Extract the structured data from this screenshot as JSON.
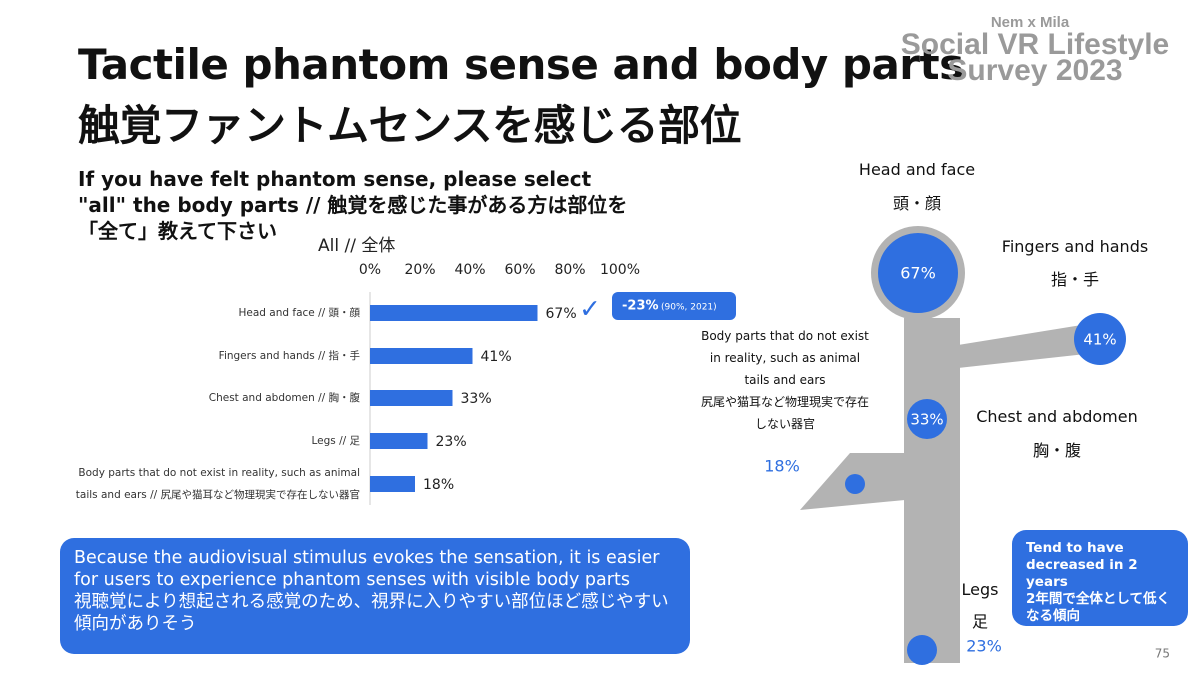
{
  "header": {
    "title_en": "Tactile phantom sense and body parts",
    "title_ja": "触覚ファントムセンスを感じる部位",
    "question": "If you have felt phantom sense, please select \"all\" the body parts // 触覚を感じた事がある方は部位を「全て」教えて下さい"
  },
  "logo": {
    "line1": "Nem x Mila",
    "line2": "Social VR Lifestyle",
    "line3": "Survey 2023"
  },
  "chart_data": {
    "type": "hbar",
    "title": "All // 全体",
    "categories": [
      "Head and face // 頭・顔",
      "Fingers and hands // 指・手",
      "Chest and abdomen // 胸・腹",
      "Legs // 足",
      "Body parts that do not exist in reality, such as animal tails and ears // 尻尾や猫耳など物理現実で存在しない器官"
    ],
    "values": [
      67,
      41,
      33,
      23,
      18
    ],
    "value_labels": [
      "67%",
      "41%",
      "33%",
      "23%",
      "18%"
    ],
    "color": "#2f6fe0",
    "xlim": [
      0,
      100
    ],
    "xticks": [
      {
        "value": 0,
        "label": "0%"
      },
      {
        "value": 20,
        "label": "20%"
      },
      {
        "value": 40,
        "label": "40%"
      },
      {
        "value": 60,
        "label": "60%"
      },
      {
        "value": 80,
        "label": "80%"
      },
      {
        "value": 100,
        "label": "100%"
      }
    ],
    "annotation": {
      "mark": "✓",
      "change": "-23%",
      "detail": "(90%, 2021)"
    }
  },
  "figure": {
    "head": {
      "en": "Head and face",
      "ja": "頭・顔"
    },
    "fingers": {
      "en": "Fingers and hands",
      "ja": "指・手"
    },
    "chest": {
      "en": "Chest and abdomen",
      "ja": "胸・腹"
    },
    "legs": {
      "en": "Legs",
      "ja": "足"
    },
    "tail": {
      "en": "Body parts that do not exist in reality, such as animal tails and ears",
      "ja": "尻尾や猫耳など物理現実で存在しない器官"
    }
  },
  "notes": {
    "insight_en": "Because the audiovisual stimulus evokes the sensation, it is easier for users to experience phantom senses with visible body parts",
    "insight_ja": "視聴覚により想起される感覚のため、視界に入りやすい部位ほど感じやすい傾向がありそう",
    "trend_en": "Tend to have decreased in 2 years",
    "trend_ja": "2年間で全体として低くなる傾向"
  },
  "page_number": "75"
}
